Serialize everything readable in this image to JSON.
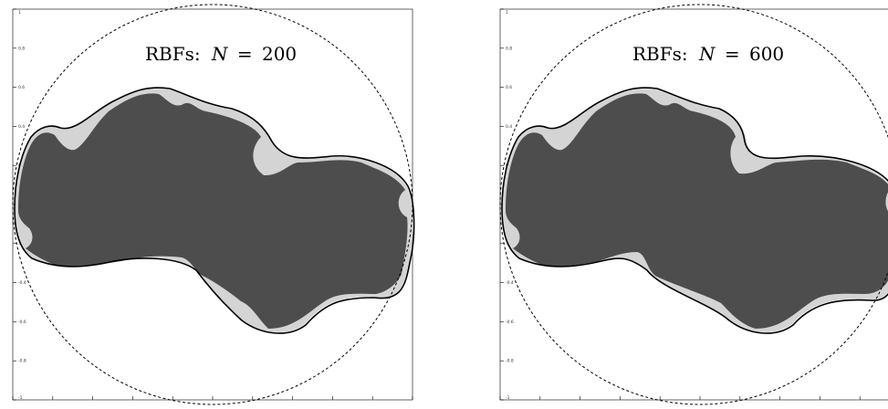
{
  "colors": {
    "domain_fill": "#4d4d4d",
    "light_region": "#d4d4d4",
    "boundary": "#000000",
    "circle": "#000000",
    "background": "#ffffff"
  },
  "chart_data": [
    {
      "type": "scatter",
      "title_prefix": "RBFs:",
      "title_var": "N",
      "title_eq": "=",
      "title_value": "200",
      "xlim": [
        -1,
        1
      ],
      "ylim": [
        -1,
        1
      ],
      "yticks": [
        1,
        0.8,
        0.6,
        0.4,
        0.2,
        0,
        -0.2,
        -0.4,
        -0.6,
        -0.8,
        -1
      ],
      "ytick_labels": [
        "1",
        "0.8",
        "0.6",
        "0.4",
        "0.2",
        "0",
        "-0.2",
        "-0.4",
        "-0.6",
        "-0.8",
        "-1"
      ],
      "grid": false,
      "reference_circle": {
        "cx": 0,
        "cy": 0,
        "r": 1,
        "style": "dashed"
      },
      "domain": [
        [
          -0.9,
          0.44
        ],
        [
          -0.55,
          0.5
        ],
        [
          -0.35,
          0.6
        ],
        [
          -0.1,
          0.6
        ],
        [
          0.25,
          0.45
        ],
        [
          0.4,
          0.25
        ],
        [
          0.8,
          0.2
        ],
        [
          1.0,
          0.0
        ],
        [
          0.9,
          -0.4
        ],
        [
          0.6,
          -0.5
        ],
        [
          0.35,
          -0.55
        ],
        [
          0.2,
          -0.38
        ],
        [
          -0.1,
          -0.25
        ],
        [
          -0.45,
          -0.3
        ],
        [
          -0.78,
          -0.3
        ],
        [
          -1.0,
          -0.1
        ],
        [
          -1.0,
          0.2
        ]
      ]
    },
    {
      "type": "scatter",
      "title_prefix": "RBFs:",
      "title_var": "N",
      "title_eq": "=",
      "title_value": "600",
      "xlim": [
        -1,
        1
      ],
      "ylim": [
        -1,
        1
      ],
      "yticks": [
        1,
        0.8,
        0.6,
        0.4,
        0.2,
        0,
        -0.2,
        -0.4,
        -0.6,
        -0.8,
        -1
      ],
      "ytick_labels": [
        "1",
        "0.8",
        "0.6",
        "0.4",
        "0.2",
        "0",
        "-0.2",
        "-0.4",
        "-0.6",
        "-0.8",
        "-1"
      ],
      "grid": false,
      "reference_circle": {
        "cx": 0,
        "cy": 0,
        "r": 1,
        "style": "dashed"
      },
      "domain": [
        [
          -0.9,
          0.44
        ],
        [
          -0.55,
          0.5
        ],
        [
          -0.35,
          0.6
        ],
        [
          -0.1,
          0.6
        ],
        [
          0.25,
          0.45
        ],
        [
          0.4,
          0.25
        ],
        [
          0.8,
          0.2
        ],
        [
          1.0,
          0.0
        ],
        [
          0.9,
          -0.4
        ],
        [
          0.6,
          -0.5
        ],
        [
          0.35,
          -0.55
        ],
        [
          0.2,
          -0.38
        ],
        [
          -0.1,
          -0.25
        ],
        [
          -0.45,
          -0.3
        ],
        [
          -0.78,
          -0.3
        ],
        [
          -1.0,
          -0.1
        ],
        [
          -1.0,
          0.2
        ]
      ]
    }
  ]
}
